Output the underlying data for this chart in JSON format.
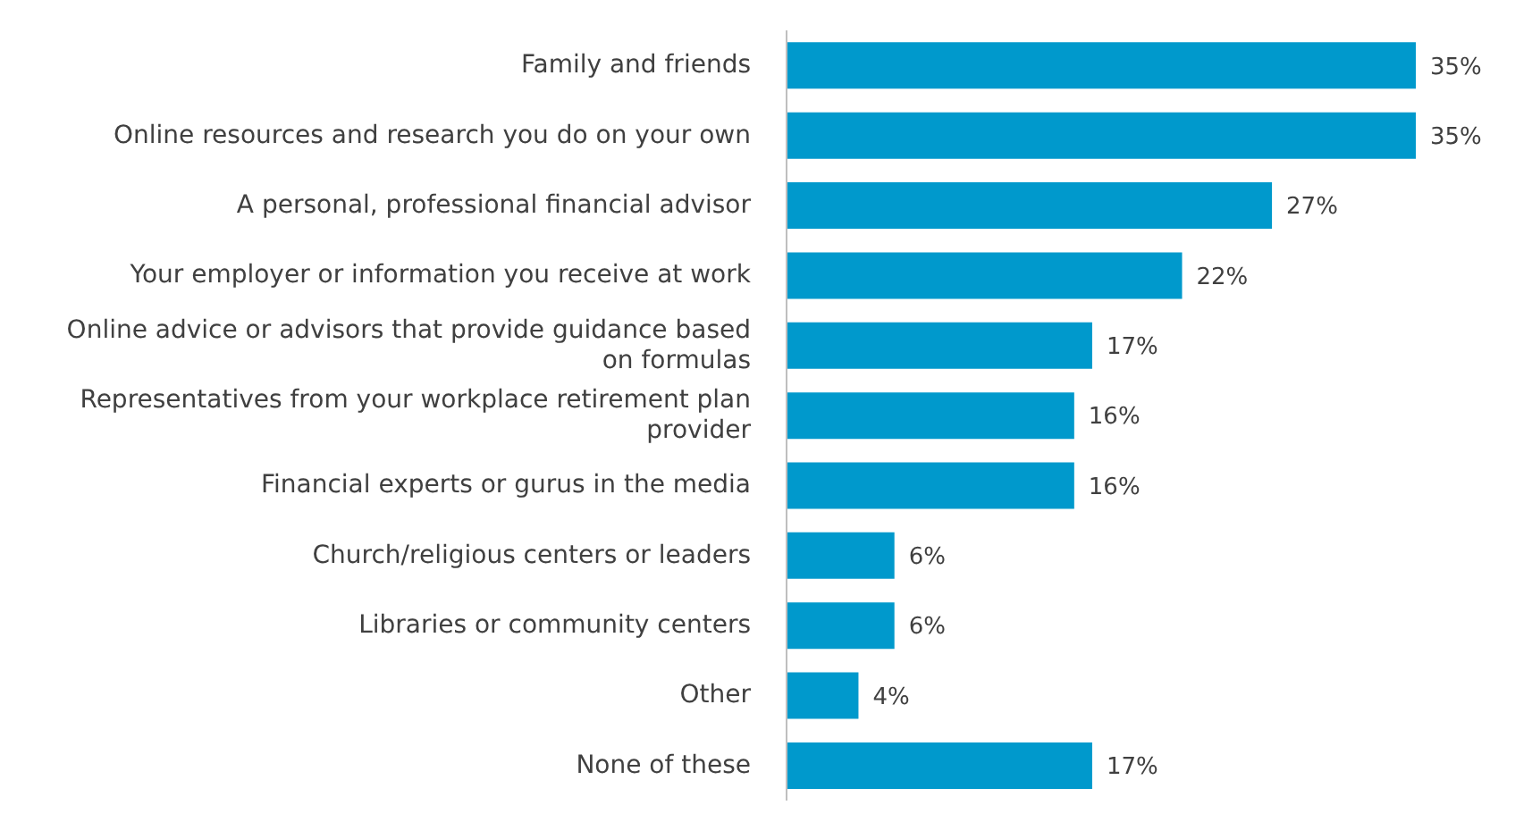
{
  "chart_data": {
    "type": "bar",
    "orientation": "horizontal",
    "categories": [
      "Family and friends",
      "Online resources and research you do on your own",
      "A personal, professional financial advisor",
      "Your employer or information you receive at work",
      "Online advice or advisors that provide guidance based on formulas",
      "Representatives from your workplace retirement plan provider",
      "Financial experts or gurus in the media",
      "Church/religious centers or leaders",
      "Libraries or community centers",
      "Other",
      "None of these"
    ],
    "values": [
      35,
      35,
      27,
      22,
      17,
      16,
      16,
      6,
      6,
      4,
      17
    ],
    "value_labels": [
      "35%",
      "35%",
      "27%",
      "22%",
      "17%",
      "16%",
      "16%",
      "6%",
      "6%",
      "4%",
      "17%"
    ],
    "color": "#0099cc",
    "xlim": [
      0,
      35
    ]
  }
}
